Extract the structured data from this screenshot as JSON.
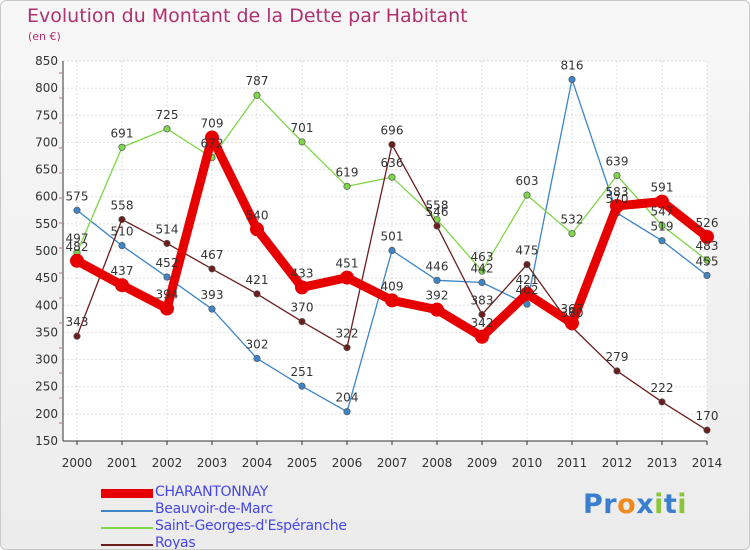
{
  "header": {
    "title": "Evolution du Montant de la Dette par Habitant",
    "subtitle": "(en €)"
  },
  "chart_data": {
    "type": "line",
    "title": "Evolution du Montant de la Dette par Habitant",
    "ylabel": "(en €)",
    "xlabel": "",
    "x": [
      "2000",
      "2001",
      "2002",
      "2003",
      "2004",
      "2005",
      "2006",
      "2007",
      "2008",
      "2009",
      "2010",
      "2011",
      "2012",
      "2013",
      "2014"
    ],
    "ylim": [
      150,
      850
    ],
    "yticks": [
      150,
      200,
      250,
      300,
      350,
      400,
      450,
      500,
      550,
      600,
      650,
      700,
      750,
      800,
      850
    ],
    "grid": true,
    "legend_position": "bottom-left",
    "series": [
      {
        "name": "CHARANTONNAY",
        "color": "#e60000",
        "values": [
          482,
          437,
          394,
          709,
          540,
          433,
          451,
          409,
          392,
          342,
          421,
          367,
          583,
          591,
          526
        ]
      },
      {
        "name": "Beauvoir-de-Marc",
        "color": "#3d85c6",
        "values": [
          575,
          510,
          452,
          393,
          302,
          251,
          204,
          501,
          446,
          442,
          402,
          816,
          570,
          519,
          455
        ]
      },
      {
        "name": "Saint-Georges-d'Espéranche",
        "color": "#7ed64a",
        "values": [
          497,
          691,
          725,
          672,
          787,
          701,
          619,
          636,
          558,
          463,
          603,
          532,
          639,
          547,
          483
        ]
      },
      {
        "name": "Royas",
        "color": "#6b1e1e",
        "values": [
          343,
          558,
          514,
          467,
          421,
          370,
          322,
          696,
          546,
          383,
          475,
          360,
          279,
          222,
          170
        ]
      }
    ]
  },
  "logo": {
    "letters": [
      "P",
      "r",
      "o",
      "x",
      "i",
      "t",
      "i"
    ],
    "colors": [
      "#3a7fcf",
      "#3a7fcf",
      "#f08a1c",
      "#3a7fcf",
      "#8cc43c",
      "#3a7fcf",
      "#8cc43c"
    ]
  }
}
